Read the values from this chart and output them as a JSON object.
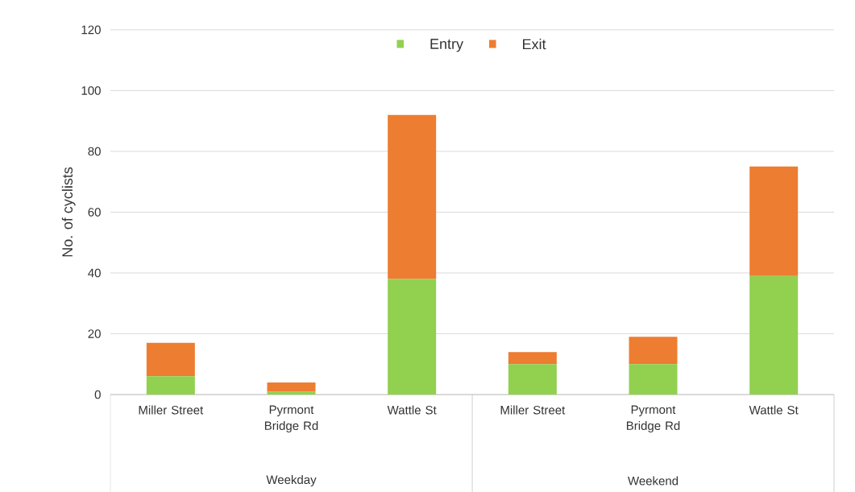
{
  "chart_data": {
    "type": "bar",
    "stacked": true,
    "ylabel": "No. of cyclists",
    "categories": [
      "Miller Street",
      "Pyrmont Bridge Rd",
      "Wattle St",
      "Miller Street",
      "Pyrmont Bridge Rd",
      "Wattle St"
    ],
    "annotations": [
      "Weekday",
      "Weekend"
    ],
    "series": [
      {
        "name": "Entry",
        "color": "#92d050",
        "values": [
          6,
          1,
          38,
          10,
          10,
          39
        ]
      },
      {
        "name": "Exit",
        "color": "#ed7d31",
        "values": [
          11,
          3,
          54,
          4,
          9,
          36
        ]
      }
    ],
    "ylim": [
      0,
      120
    ],
    "yticks": [
      0,
      20,
      40,
      60,
      80,
      100,
      120
    ],
    "grid": "y",
    "legend": "top"
  }
}
